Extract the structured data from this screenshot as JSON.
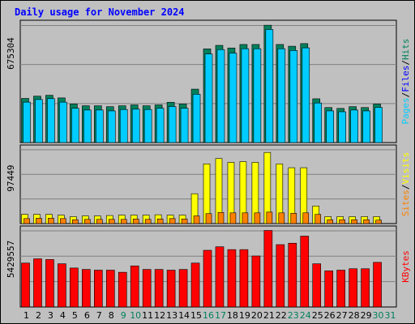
{
  "title": "Daily usage for November 2024",
  "colors": {
    "hits": "#00ccff",
    "hits_back": "#00805c",
    "files": "#00c0ff",
    "pages": "#00e0ff",
    "visits": "#ffff00",
    "sites": "#ff8000",
    "kbytes": "#ff0000",
    "weekday_label": "#000000",
    "weekend_label": "#00805c",
    "panel_bg": "#c0c0c0",
    "grid": "#808080"
  },
  "chart_data": [
    {
      "type": "bar",
      "panel": "hits-files",
      "ytick": "675304",
      "ymax": 675304,
      "legend": [
        {
          "name": "Pages",
          "color": "#00ccff"
        },
        {
          "name": "/",
          "color": "#000000"
        },
        {
          "name": "Files",
          "color": "#0000ff"
        },
        {
          "name": "/",
          "color": "#000000"
        },
        {
          "name": "Hits",
          "color": "#00805c"
        }
      ],
      "categories": [
        "1",
        "2",
        "3",
        "4",
        "5",
        "6",
        "7",
        "8",
        "9",
        "10",
        "11",
        "12",
        "13",
        "14",
        "15",
        "16",
        "17",
        "18",
        "19",
        "20",
        "21",
        "22",
        "23",
        "24",
        "25",
        "26",
        "27",
        "28",
        "29",
        "30",
        "31"
      ],
      "series": [
        {
          "name": "Hits",
          "values": [
            252000,
            265000,
            270000,
            255000,
            220000,
            210000,
            210000,
            205000,
            210000,
            215000,
            210000,
            215000,
            230000,
            220000,
            305000,
            535000,
            555000,
            540000,
            560000,
            560000,
            670000,
            560000,
            550000,
            565000,
            250000,
            200000,
            195000,
            205000,
            200000,
            220000,
            0
          ]
        },
        {
          "name": "Files",
          "values": [
            240000,
            255000,
            260000,
            240000,
            205000,
            195000,
            195000,
            190000,
            198000,
            200000,
            198000,
            205000,
            215000,
            205000,
            285000,
            515000,
            540000,
            520000,
            545000,
            545000,
            655000,
            545000,
            535000,
            550000,
            235000,
            190000,
            185000,
            195000,
            190000,
            210000,
            0
          ]
        }
      ]
    },
    {
      "type": "bar",
      "panel": "visits-sites",
      "ytick": "97449",
      "ymax": 97449,
      "legend": [
        {
          "name": "Sites",
          "color": "#ff8000"
        },
        {
          "name": "/",
          "color": "#000000"
        },
        {
          "name": "Visits",
          "color": "#ffff00"
        }
      ],
      "categories": [
        "1",
        "2",
        "3",
        "4",
        "5",
        "6",
        "7",
        "8",
        "9",
        "10",
        "11",
        "12",
        "13",
        "14",
        "15",
        "16",
        "17",
        "18",
        "19",
        "20",
        "21",
        "22",
        "23",
        "24",
        "25",
        "26",
        "27",
        "28",
        "29",
        "30",
        "31"
      ],
      "series": [
        {
          "name": "Visits",
          "values": [
            12000,
            12000,
            12000,
            11000,
            9000,
            10000,
            10000,
            10500,
            11000,
            11000,
            11000,
            11500,
            11000,
            11000,
            39000,
            78000,
            85000,
            80000,
            81000,
            80000,
            93000,
            78000,
            73000,
            73000,
            23000,
            9000,
            9000,
            9000,
            9000,
            9000,
            0
          ]
        },
        {
          "name": "Sites",
          "values": [
            6500,
            7000,
            7000,
            6500,
            5000,
            5500,
            5500,
            5500,
            5500,
            6000,
            5500,
            6000,
            6500,
            6000,
            10000,
            13000,
            14500,
            14000,
            14000,
            14000,
            15000,
            14000,
            13500,
            14000,
            12000,
            5000,
            5000,
            5000,
            5000,
            4500,
            0
          ]
        }
      ]
    },
    {
      "type": "bar",
      "panel": "kbytes",
      "ytick": "5429557",
      "ymax": 5429557,
      "legend": [
        {
          "name": "KBytes",
          "color": "#ff0000"
        }
      ],
      "categories": [
        "1",
        "2",
        "3",
        "4",
        "5",
        "6",
        "7",
        "8",
        "9",
        "10",
        "11",
        "12",
        "13",
        "14",
        "15",
        "16",
        "17",
        "18",
        "19",
        "20",
        "21",
        "22",
        "23",
        "24",
        "25",
        "26",
        "27",
        "28",
        "29",
        "30",
        "31"
      ],
      "series": [
        {
          "name": "KBytes",
          "values": [
            3100000,
            3400000,
            3350000,
            3050000,
            2750000,
            2650000,
            2600000,
            2600000,
            2450000,
            2900000,
            2650000,
            2650000,
            2600000,
            2650000,
            3100000,
            4000000,
            4250000,
            4050000,
            4050000,
            3600000,
            5400000,
            4400000,
            4500000,
            5000000,
            3050000,
            2550000,
            2600000,
            2700000,
            2700000,
            3150000,
            0
          ]
        }
      ]
    }
  ],
  "weekend_days": [
    9,
    10,
    16,
    17,
    23,
    24,
    30,
    31
  ]
}
